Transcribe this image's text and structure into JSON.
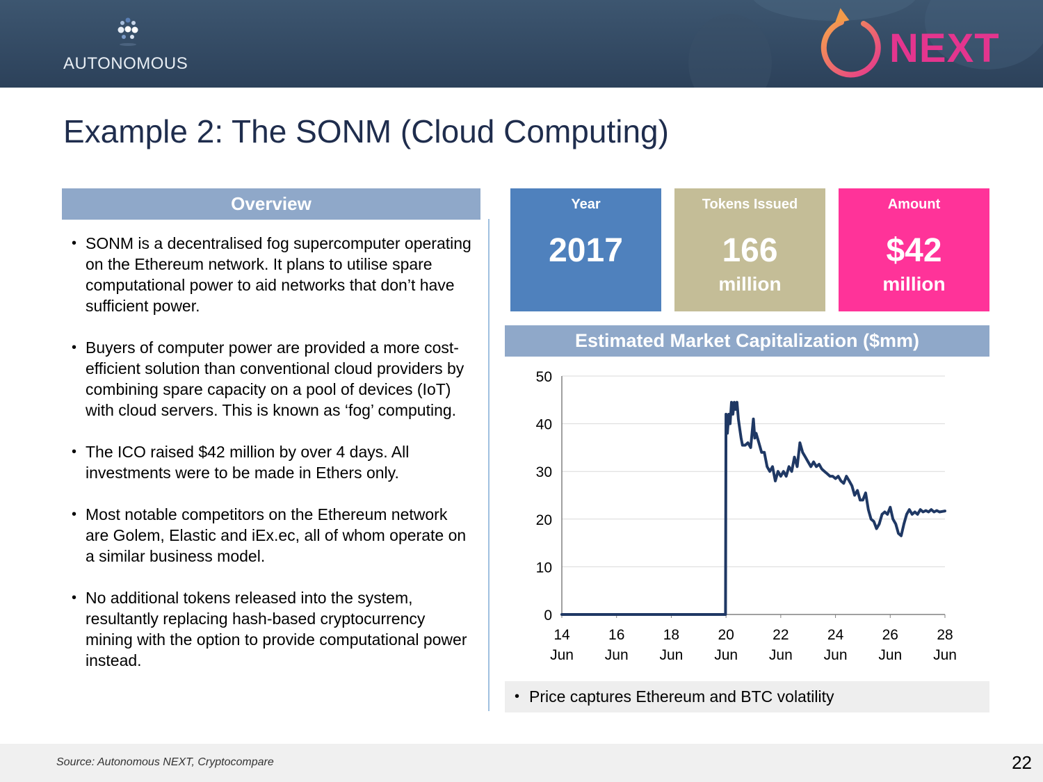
{
  "header": {
    "left_logo_text": "AUTONOMOUS",
    "right_logo_text": "NEXT",
    "colors": {
      "banner": "#34495f",
      "next_pink": "#e4358e",
      "arrow_orange": "#f39a4a"
    }
  },
  "title": "Example 2: The SONM (Cloud Computing)",
  "overview": {
    "header": "Overview",
    "bullets": [
      "SONM is a decentralised fog supercomputer operating on the Ethereum network. It plans to utilise spare computational power to aid networks that don’t have sufficient power.",
      "Buyers of computer power are provided a more cost-efficient solution than conventional cloud providers by combining spare capacity on a pool of devices (IoT) with cloud servers. This is known as ‘fog’ computing.",
      "The ICO raised $42 million by over 4 days. All investments were to be made in Ethers only.",
      "Most notable competitors on the Ethereum network are Golem, Elastic and iEx.ec, all of whom operate on a similar business model.",
      "No additional tokens released into the system, resultantly replacing hash-based cryptocurrency mining with the option to provide computational power instead."
    ]
  },
  "stats": [
    {
      "label": "Year",
      "value": "2017",
      "unit": "",
      "color": "#4f81bd"
    },
    {
      "label": "Tokens Issued",
      "value": "166",
      "unit": "million",
      "color": "#c4bd97"
    },
    {
      "label": "Amount",
      "value": "$42",
      "unit": "million",
      "color": "#ff3399"
    }
  ],
  "chart_header": "Estimated Market Capitalization ($mm)",
  "chart_data": {
    "type": "line",
    "title": "Estimated Market Capitalization ($mm)",
    "xlabel": "",
    "ylabel": "",
    "ylim": [
      0,
      50
    ],
    "xlim": [
      14,
      28
    ],
    "yticks": [
      "0",
      "10",
      "20",
      "30",
      "40",
      "50"
    ],
    "xticks": [
      {
        "day": "14",
        "month": "Jun"
      },
      {
        "day": "16",
        "month": "Jun"
      },
      {
        "day": "18",
        "month": "Jun"
      },
      {
        "day": "20",
        "month": "Jun"
      },
      {
        "day": "22",
        "month": "Jun"
      },
      {
        "day": "24",
        "month": "Jun"
      },
      {
        "day": "26",
        "month": "Jun"
      },
      {
        "day": "28",
        "month": "Jun"
      }
    ],
    "grid": true,
    "line_color": "#1f3864",
    "series": [
      {
        "x": [
          14,
          19.98,
          20.0,
          20.05,
          20.1,
          20.15,
          20.2,
          20.25,
          20.3,
          20.35,
          20.4,
          20.45,
          20.5,
          20.55,
          20.6,
          20.7,
          20.8,
          20.9,
          21.0,
          21.05,
          21.1,
          21.2,
          21.3,
          21.4,
          21.5,
          21.6,
          21.7,
          21.8,
          21.9,
          22.0,
          22.1,
          22.2,
          22.3,
          22.4,
          22.5,
          22.6,
          22.7,
          22.8,
          22.9,
          23.0,
          23.1,
          23.2,
          23.3,
          23.4,
          23.5,
          23.6,
          23.7,
          23.8,
          23.9,
          24.0,
          24.1,
          24.2,
          24.3,
          24.4,
          24.5,
          24.6,
          24.7,
          24.8,
          24.9,
          25.0,
          25.1,
          25.2,
          25.3,
          25.4,
          25.5,
          25.6,
          25.7,
          25.8,
          25.9,
          26.0,
          26.1,
          26.2,
          26.3,
          26.4,
          26.5,
          26.6,
          26.7,
          26.8,
          26.9,
          27.0,
          27.1,
          27.2,
          27.3,
          27.4,
          27.5,
          27.6,
          27.7,
          27.8,
          27.9,
          28.0
        ],
        "y": [
          0,
          0,
          42,
          38,
          42,
          40,
          44.5,
          42,
          44.5,
          43,
          44.5,
          41,
          39,
          37,
          35.5,
          35.5,
          36,
          35,
          41,
          37,
          38,
          36,
          34,
          34,
          31,
          30,
          31,
          28,
          30,
          29,
          30,
          29,
          31,
          30,
          33,
          31,
          36,
          34,
          33,
          32,
          31,
          32,
          31,
          31.5,
          30.5,
          30,
          29.5,
          29,
          29,
          28.5,
          29,
          28,
          27.5,
          29,
          28,
          27,
          25,
          26,
          24,
          24,
          25.5,
          22,
          20,
          19.5,
          18,
          19,
          21,
          21.5,
          21,
          22.5,
          20,
          19,
          17,
          16.5,
          19,
          21,
          22,
          21,
          21.5,
          21,
          22,
          21.5,
          21.8,
          21.5,
          22,
          21.5,
          21.8,
          21.5,
          21.6,
          21.7
        ]
      }
    ]
  },
  "note": "Price captures Ethereum and BTC volatility",
  "footer": {
    "source": "Source: Autonomous NEXT, Cryptocompare",
    "page": "22"
  }
}
